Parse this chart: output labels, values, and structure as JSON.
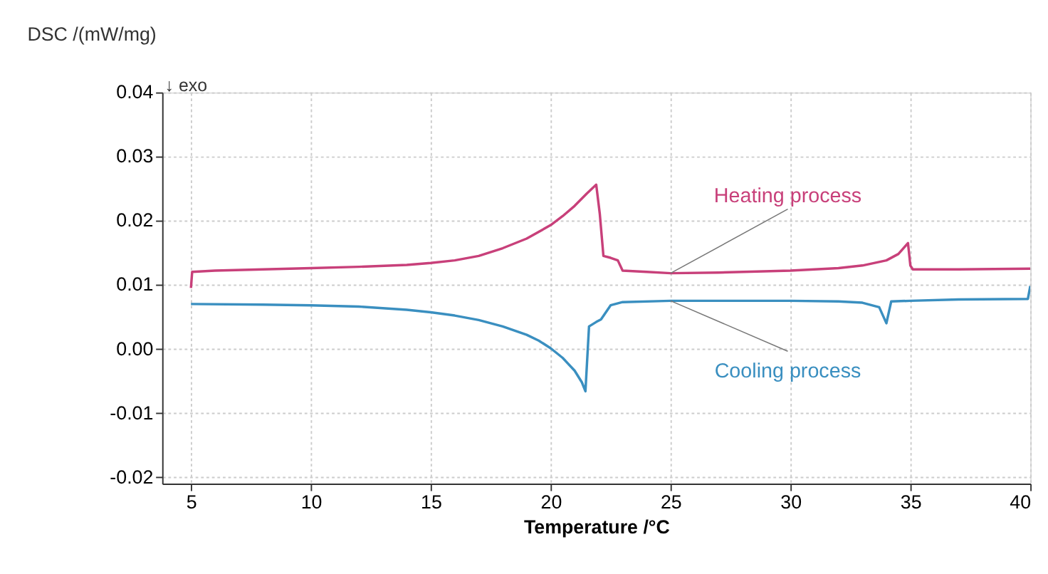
{
  "chart_data": {
    "type": "line",
    "ylabel": "DSC /(mW/mg)",
    "xlabel": "Temperature /°C",
    "xlim": [
      3.8,
      40
    ],
    "xticks": [
      5,
      10,
      15,
      20,
      25,
      30,
      35,
      40
    ],
    "ylim": [
      -0.021,
      0.04
    ],
    "yticks": [
      {
        "value": -0.02,
        "label": "-0.02"
      },
      {
        "value": -0.01,
        "label": "-0.01"
      },
      {
        "value": 0,
        "label": "0.00"
      },
      {
        "value": 0.01,
        "label": "0.01"
      },
      {
        "value": 0.02,
        "label": "0.02"
      },
      {
        "value": 0.03,
        "label": "0.03"
      },
      {
        "value": 0.04,
        "label": "0.04"
      }
    ],
    "grid": true,
    "line_style": "solid",
    "marker": "none",
    "series": [
      {
        "color": "#c8407a",
        "x": [
          5,
          5.05,
          6,
          8,
          10,
          12,
          14,
          15,
          16,
          17,
          18,
          19,
          20,
          20.5,
          21,
          21.5,
          21.9,
          22.05,
          22.2,
          22.5,
          22.8,
          23,
          24,
          25,
          27,
          30,
          32,
          33,
          34,
          34.5,
          34.9,
          35,
          35.1,
          37,
          40
        ],
        "values": [
          0.0095,
          0.012,
          0.0122,
          0.0124,
          0.0126,
          0.0128,
          0.0131,
          0.0134,
          0.0138,
          0.0145,
          0.0157,
          0.0172,
          0.0193,
          0.0207,
          0.0223,
          0.0242,
          0.0256,
          0.021,
          0.0145,
          0.0142,
          0.0138,
          0.0122,
          0.012,
          0.0118,
          0.0119,
          0.0122,
          0.0126,
          0.013,
          0.0138,
          0.0148,
          0.0165,
          0.013,
          0.0124,
          0.0124,
          0.0125
        ]
      },
      {
        "color": "#3a8fc0",
        "x": [
          5,
          8,
          10,
          12,
          14,
          15,
          16,
          17,
          18,
          19,
          19.5,
          20,
          20.5,
          21,
          21.3,
          21.45,
          21.6,
          21.9,
          22.1,
          22.5,
          23,
          25,
          27,
          30,
          32,
          33,
          33.7,
          34,
          34.2,
          35,
          37,
          39.9,
          40
        ],
        "values": [
          0.007,
          0.0069,
          0.0068,
          0.0066,
          0.0061,
          0.0057,
          0.0052,
          0.0045,
          0.0035,
          0.0022,
          0.0013,
          0.0001,
          -0.0014,
          -0.0034,
          -0.0052,
          -0.0066,
          0.0035,
          0.0042,
          0.0046,
          0.0068,
          0.0073,
          0.0075,
          0.0075,
          0.0075,
          0.0074,
          0.0072,
          0.0065,
          0.004,
          0.0074,
          0.0075,
          0.0077,
          0.0078,
          0.0098
        ]
      }
    ],
    "annotations": [
      "↓ exo",
      {
        "text": "Heating process",
        "x": 25,
        "y": 0.0118
      },
      {
        "text": "Cooling process",
        "x": 25,
        "y": 0.0075
      }
    ]
  }
}
